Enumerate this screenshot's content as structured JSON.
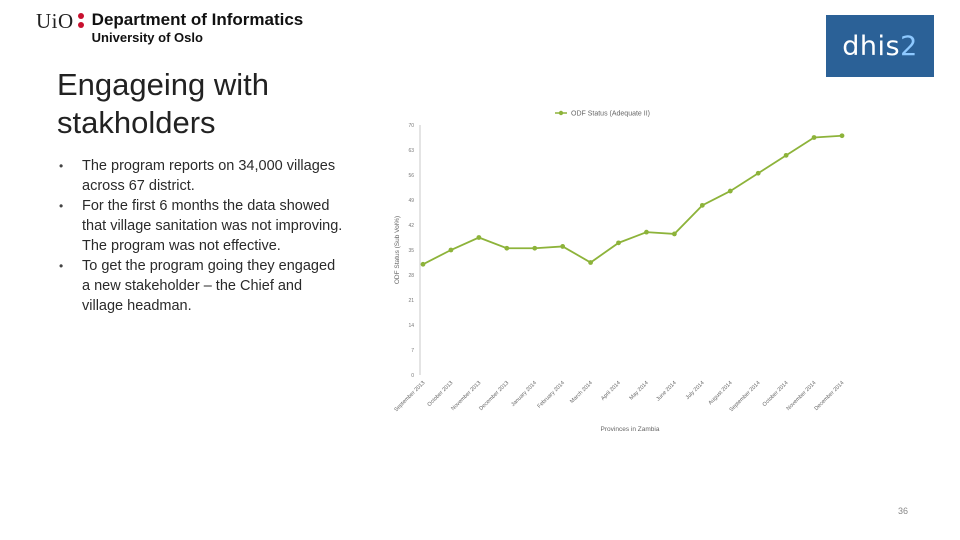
{
  "header": {
    "logo_mark": "UiO",
    "department": "Department of Informatics",
    "university": "University of Oslo",
    "dhis_brand": "dhis",
    "dhis_brand_num": "2"
  },
  "slide": {
    "title_line1": "Engageing with",
    "title_line2": "stakholders",
    "bullets": [
      "The program reports on 34,000 villages across 67 district.",
      "For the first 6 months the data showed that village sanitation was not improving. The program was not effective.",
      "To get the program going they engaged a new stakeholder – the Chief and village headman."
    ],
    "page_number": "36"
  },
  "colors": {
    "series": "#8db33a",
    "dhis_bg": "#2b6197",
    "uio_dot": "#c8102e"
  },
  "chart_data": {
    "type": "line",
    "legend": "ODF Status (Adequate II)",
    "ylabel": "ODF Status (Sub Vol%)",
    "xlabel": "Provinces in Zambia",
    "ylim": [
      0,
      70
    ],
    "yticks": [
      "0",
      "7",
      "14",
      "21",
      "28",
      "35",
      "42",
      "49",
      "56",
      "63",
      "70"
    ],
    "categories": [
      "September 2013",
      "October 2013",
      "November 2013",
      "December 2013",
      "January 2014",
      "February 2014",
      "March 2014",
      "April 2014",
      "May 2014",
      "June 2014",
      "July 2014",
      "August 2014",
      "September 2014",
      "October 2014",
      "November 2014",
      "December 2014"
    ],
    "values": [
      31,
      35,
      38.5,
      35.5,
      35.5,
      36,
      31.5,
      37,
      40,
      39.5,
      47.5,
      51.5,
      56.5,
      61.5,
      66.5,
      67
    ]
  }
}
